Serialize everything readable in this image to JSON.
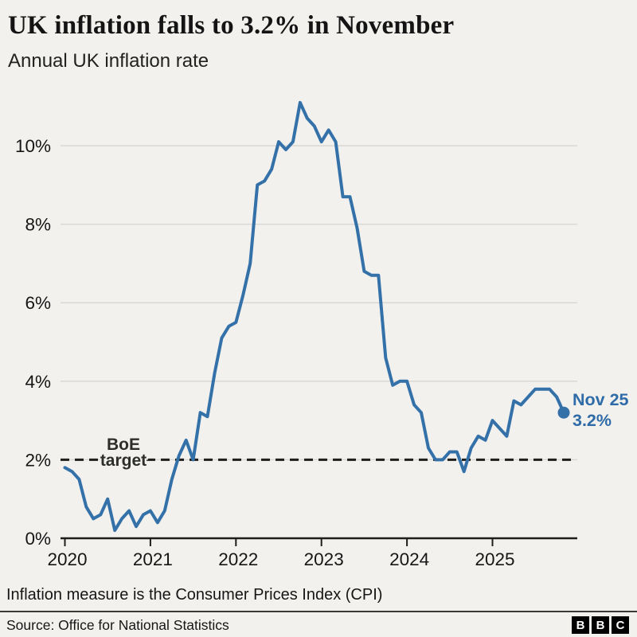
{
  "header": {
    "title": "UK inflation falls to 3.2% in November",
    "subtitle": "Annual UK inflation rate"
  },
  "footer": {
    "footnote": "Inflation measure is the Consumer Prices Index (CPI)",
    "source": "Source: Office for National Statistics",
    "logo_letters": [
      "B",
      "B",
      "C"
    ]
  },
  "colors": {
    "background": "#f2f1ee",
    "line": "#3471a9",
    "accent_text": "#2f6ba7",
    "grid": "#d9d8d4",
    "axis": "#1e1e1c"
  },
  "annotation": {
    "line1": "Nov 25",
    "line2": "3.2%"
  },
  "target_label": {
    "line1": "BoE",
    "line2": "target"
  },
  "chart_data": {
    "type": "line",
    "title": "Annual UK inflation rate",
    "x_start": "2020-01",
    "x_end": "2025-11",
    "frequency": "monthly",
    "x_tick_labels": [
      "2020",
      "2021",
      "2022",
      "2023",
      "2024",
      "2025"
    ],
    "y_ticks": [
      0,
      2,
      4,
      6,
      8,
      10
    ],
    "y_tick_labels": [
      "0%",
      "2%",
      "4%",
      "6%",
      "8%",
      "10%"
    ],
    "ylim": [
      0,
      11.6
    ],
    "grid": "horizontal",
    "legend": "none",
    "reference_line": {
      "value": 2,
      "label": "BoE target",
      "style": "dashed"
    },
    "end_point": {
      "label": "Nov 25",
      "value": 3.2
    },
    "series": [
      {
        "name": "Annual UK inflation rate (CPI)",
        "values": [
          1.8,
          1.7,
          1.5,
          0.8,
          0.5,
          0.6,
          1.0,
          0.2,
          0.5,
          0.7,
          0.3,
          0.6,
          0.7,
          0.4,
          0.7,
          1.5,
          2.1,
          2.5,
          2.0,
          3.2,
          3.1,
          4.2,
          5.1,
          5.4,
          5.5,
          6.2,
          7.0,
          9.0,
          9.1,
          9.4,
          10.1,
          9.9,
          10.1,
          11.1,
          10.7,
          10.5,
          10.1,
          10.4,
          10.1,
          8.7,
          8.7,
          7.9,
          6.8,
          6.7,
          6.7,
          4.6,
          3.9,
          4.0,
          4.0,
          3.4,
          3.2,
          2.3,
          2.0,
          2.0,
          2.2,
          2.2,
          1.7,
          2.3,
          2.6,
          2.5,
          3.0,
          2.8,
          2.6,
          3.5,
          3.4,
          3.6,
          3.8,
          3.8,
          3.8,
          3.6,
          3.2
        ]
      }
    ]
  }
}
